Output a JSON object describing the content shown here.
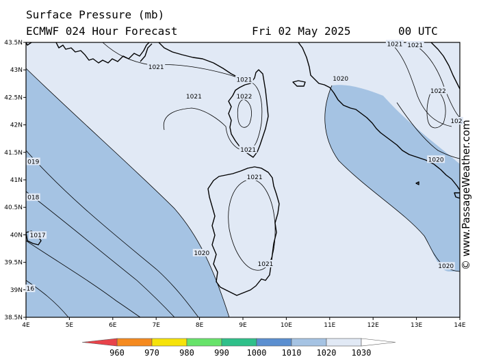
{
  "header": {
    "line1": "Surface Pressure (mb)",
    "model": "ECMWF 024 Hour Forecast",
    "date": "Fri 02 May 2025",
    "time": "00 UTC"
  },
  "credit": "© www.PassageWeather.com",
  "axes": {
    "lat_labels": [
      "43.5N",
      "43N",
      "42.5N",
      "42N",
      "41.5N",
      "41N",
      "40.5N",
      "40N",
      "39.5N",
      "39N",
      "38.5N"
    ],
    "lon_labels": [
      "4E",
      "5E",
      "6E",
      "7E",
      "8E",
      "9E",
      "10E",
      "11E",
      "12E",
      "13E",
      "14E"
    ],
    "lat_range": [
      38.5,
      43.5
    ],
    "lon_range": [
      4,
      14
    ]
  },
  "isobar_labels": [
    {
      "text": "1021",
      "lon": 7.0,
      "lat": 43.05
    },
    {
      "text": "1021",
      "lon": 7.87,
      "lat": 42.52
    },
    {
      "text": "1021",
      "lon": 9.03,
      "lat": 42.82
    },
    {
      "text": "1022",
      "lon": 9.03,
      "lat": 42.52
    },
    {
      "text": "1021",
      "lon": 9.12,
      "lat": 41.55
    },
    {
      "text": "1021",
      "lon": 9.27,
      "lat": 41.05
    },
    {
      "text": "1021",
      "lon": 9.52,
      "lat": 39.47
    },
    {
      "text": "1020",
      "lon": 8.05,
      "lat": 39.67
    },
    {
      "text": "1020",
      "lon": 11.25,
      "lat": 42.84
    },
    {
      "text": "1021",
      "lon": 12.5,
      "lat": 43.47
    },
    {
      "text": "1021",
      "lon": 12.97,
      "lat": 43.45
    },
    {
      "text": "1022",
      "lon": 13.5,
      "lat": 42.62
    },
    {
      "text": "102",
      "lon": 13.92,
      "lat": 42.07
    },
    {
      "text": "1020",
      "lon": 13.45,
      "lat": 41.37
    },
    {
      "text": "1020",
      "lon": 13.68,
      "lat": 39.43
    },
    {
      "text": "019",
      "lon": 4.17,
      "lat": 41.33
    },
    {
      "text": "018",
      "lon": 4.17,
      "lat": 40.68
    },
    {
      "text": "1017",
      "lon": 4.27,
      "lat": 39.99
    },
    {
      "text": "16",
      "lon": 4.1,
      "lat": 39.02
    }
  ],
  "legend": {
    "labels": [
      "960",
      "970",
      "980",
      "990",
      "1000",
      "1010",
      "1020",
      "1030"
    ],
    "colors": [
      "#e8434a",
      "#f58a1f",
      "#f6e30a",
      "#67e36a",
      "#2fc08a",
      "#5b8fd0",
      "#a5c3e3",
      "#e1e9f5"
    ]
  },
  "colors": {
    "fill_1020_1030": "#e1e9f5",
    "fill_1010_1020": "#a5c3e3",
    "coast": "#000000"
  }
}
